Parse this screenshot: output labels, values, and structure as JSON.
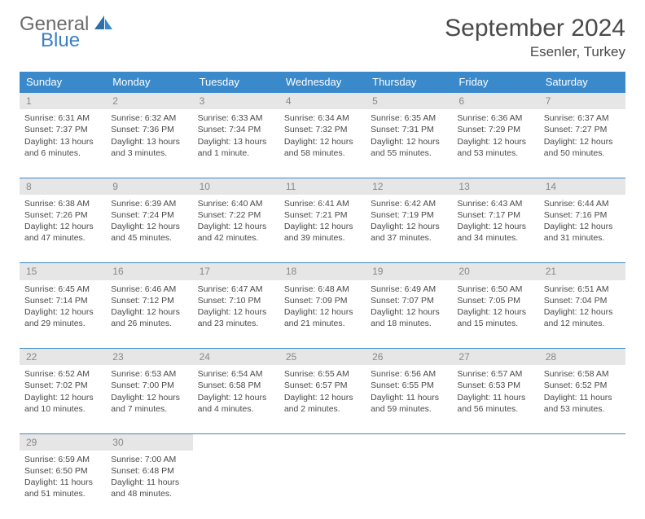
{
  "logo": {
    "word1": "General",
    "word2": "Blue"
  },
  "title": "September 2024",
  "location": "Esenler, Turkey",
  "colors": {
    "header_bg": "#3a8acb",
    "header_text": "#ffffff",
    "daynum_bg": "#e6e6e6",
    "daynum_text": "#888888",
    "body_text": "#4a4a4a",
    "rule": "#3a8acb",
    "logo_gray": "#6b6b6b",
    "logo_blue": "#3a7fc4"
  },
  "weekdays": [
    "Sunday",
    "Monday",
    "Tuesday",
    "Wednesday",
    "Thursday",
    "Friday",
    "Saturday"
  ],
  "weeks": [
    [
      {
        "n": "1",
        "sr": "Sunrise: 6:31 AM",
        "ss": "Sunset: 7:37 PM",
        "d1": "Daylight: 13 hours",
        "d2": "and 6 minutes."
      },
      {
        "n": "2",
        "sr": "Sunrise: 6:32 AM",
        "ss": "Sunset: 7:36 PM",
        "d1": "Daylight: 13 hours",
        "d2": "and 3 minutes."
      },
      {
        "n": "3",
        "sr": "Sunrise: 6:33 AM",
        "ss": "Sunset: 7:34 PM",
        "d1": "Daylight: 13 hours",
        "d2": "and 1 minute."
      },
      {
        "n": "4",
        "sr": "Sunrise: 6:34 AM",
        "ss": "Sunset: 7:32 PM",
        "d1": "Daylight: 12 hours",
        "d2": "and 58 minutes."
      },
      {
        "n": "5",
        "sr": "Sunrise: 6:35 AM",
        "ss": "Sunset: 7:31 PM",
        "d1": "Daylight: 12 hours",
        "d2": "and 55 minutes."
      },
      {
        "n": "6",
        "sr": "Sunrise: 6:36 AM",
        "ss": "Sunset: 7:29 PM",
        "d1": "Daylight: 12 hours",
        "d2": "and 53 minutes."
      },
      {
        "n": "7",
        "sr": "Sunrise: 6:37 AM",
        "ss": "Sunset: 7:27 PM",
        "d1": "Daylight: 12 hours",
        "d2": "and 50 minutes."
      }
    ],
    [
      {
        "n": "8",
        "sr": "Sunrise: 6:38 AM",
        "ss": "Sunset: 7:26 PM",
        "d1": "Daylight: 12 hours",
        "d2": "and 47 minutes."
      },
      {
        "n": "9",
        "sr": "Sunrise: 6:39 AM",
        "ss": "Sunset: 7:24 PM",
        "d1": "Daylight: 12 hours",
        "d2": "and 45 minutes."
      },
      {
        "n": "10",
        "sr": "Sunrise: 6:40 AM",
        "ss": "Sunset: 7:22 PM",
        "d1": "Daylight: 12 hours",
        "d2": "and 42 minutes."
      },
      {
        "n": "11",
        "sr": "Sunrise: 6:41 AM",
        "ss": "Sunset: 7:21 PM",
        "d1": "Daylight: 12 hours",
        "d2": "and 39 minutes."
      },
      {
        "n": "12",
        "sr": "Sunrise: 6:42 AM",
        "ss": "Sunset: 7:19 PM",
        "d1": "Daylight: 12 hours",
        "d2": "and 37 minutes."
      },
      {
        "n": "13",
        "sr": "Sunrise: 6:43 AM",
        "ss": "Sunset: 7:17 PM",
        "d1": "Daylight: 12 hours",
        "d2": "and 34 minutes."
      },
      {
        "n": "14",
        "sr": "Sunrise: 6:44 AM",
        "ss": "Sunset: 7:16 PM",
        "d1": "Daylight: 12 hours",
        "d2": "and 31 minutes."
      }
    ],
    [
      {
        "n": "15",
        "sr": "Sunrise: 6:45 AM",
        "ss": "Sunset: 7:14 PM",
        "d1": "Daylight: 12 hours",
        "d2": "and 29 minutes."
      },
      {
        "n": "16",
        "sr": "Sunrise: 6:46 AM",
        "ss": "Sunset: 7:12 PM",
        "d1": "Daylight: 12 hours",
        "d2": "and 26 minutes."
      },
      {
        "n": "17",
        "sr": "Sunrise: 6:47 AM",
        "ss": "Sunset: 7:10 PM",
        "d1": "Daylight: 12 hours",
        "d2": "and 23 minutes."
      },
      {
        "n": "18",
        "sr": "Sunrise: 6:48 AM",
        "ss": "Sunset: 7:09 PM",
        "d1": "Daylight: 12 hours",
        "d2": "and 21 minutes."
      },
      {
        "n": "19",
        "sr": "Sunrise: 6:49 AM",
        "ss": "Sunset: 7:07 PM",
        "d1": "Daylight: 12 hours",
        "d2": "and 18 minutes."
      },
      {
        "n": "20",
        "sr": "Sunrise: 6:50 AM",
        "ss": "Sunset: 7:05 PM",
        "d1": "Daylight: 12 hours",
        "d2": "and 15 minutes."
      },
      {
        "n": "21",
        "sr": "Sunrise: 6:51 AM",
        "ss": "Sunset: 7:04 PM",
        "d1": "Daylight: 12 hours",
        "d2": "and 12 minutes."
      }
    ],
    [
      {
        "n": "22",
        "sr": "Sunrise: 6:52 AM",
        "ss": "Sunset: 7:02 PM",
        "d1": "Daylight: 12 hours",
        "d2": "and 10 minutes."
      },
      {
        "n": "23",
        "sr": "Sunrise: 6:53 AM",
        "ss": "Sunset: 7:00 PM",
        "d1": "Daylight: 12 hours",
        "d2": "and 7 minutes."
      },
      {
        "n": "24",
        "sr": "Sunrise: 6:54 AM",
        "ss": "Sunset: 6:58 PM",
        "d1": "Daylight: 12 hours",
        "d2": "and 4 minutes."
      },
      {
        "n": "25",
        "sr": "Sunrise: 6:55 AM",
        "ss": "Sunset: 6:57 PM",
        "d1": "Daylight: 12 hours",
        "d2": "and 2 minutes."
      },
      {
        "n": "26",
        "sr": "Sunrise: 6:56 AM",
        "ss": "Sunset: 6:55 PM",
        "d1": "Daylight: 11 hours",
        "d2": "and 59 minutes."
      },
      {
        "n": "27",
        "sr": "Sunrise: 6:57 AM",
        "ss": "Sunset: 6:53 PM",
        "d1": "Daylight: 11 hours",
        "d2": "and 56 minutes."
      },
      {
        "n": "28",
        "sr": "Sunrise: 6:58 AM",
        "ss": "Sunset: 6:52 PM",
        "d1": "Daylight: 11 hours",
        "d2": "and 53 minutes."
      }
    ],
    [
      {
        "n": "29",
        "sr": "Sunrise: 6:59 AM",
        "ss": "Sunset: 6:50 PM",
        "d1": "Daylight: 11 hours",
        "d2": "and 51 minutes."
      },
      {
        "n": "30",
        "sr": "Sunrise: 7:00 AM",
        "ss": "Sunset: 6:48 PM",
        "d1": "Daylight: 11 hours",
        "d2": "and 48 minutes."
      },
      null,
      null,
      null,
      null,
      null
    ]
  ]
}
